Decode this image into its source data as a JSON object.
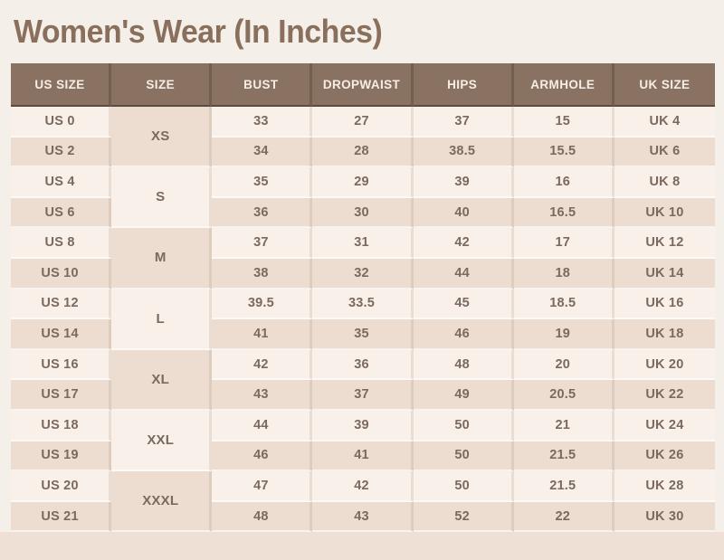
{
  "page": {
    "title": "Women's Wear (In Inches)",
    "background": "#f4f0e9"
  },
  "colors": {
    "title_text": "#8a6f5c",
    "header_bg": "#8a7263",
    "header_text": "#f6eee6",
    "header_separator": "#745e4d",
    "row_cream": "#f8f0e9",
    "row_beige": "#ecddd0",
    "body_text": "#7b695d",
    "footer_band": "#eee0d4"
  },
  "chart_data": {
    "type": "table",
    "title": "Women's Wear (In Inches)",
    "columns": [
      "US SIZE",
      "SIZE",
      "BUST",
      "DROPWAIST",
      "HIPS",
      "ARMHOLE",
      "UK SIZE"
    ],
    "groups": [
      {
        "size": "XS",
        "rows": [
          {
            "us_size": "US 0",
            "bust": "33",
            "dropwaist": "27",
            "hips": "37",
            "armhole": "15",
            "uk_size": "UK 4"
          },
          {
            "us_size": "US 2",
            "bust": "34",
            "dropwaist": "28",
            "hips": "38.5",
            "armhole": "15.5",
            "uk_size": "UK 6"
          }
        ]
      },
      {
        "size": "S",
        "rows": [
          {
            "us_size": "US 4",
            "bust": "35",
            "dropwaist": "29",
            "hips": "39",
            "armhole": "16",
            "uk_size": "UK 8"
          },
          {
            "us_size": "US 6",
            "bust": "36",
            "dropwaist": "30",
            "hips": "40",
            "armhole": "16.5",
            "uk_size": "UK 10"
          }
        ]
      },
      {
        "size": "M",
        "rows": [
          {
            "us_size": "US 8",
            "bust": "37",
            "dropwaist": "31",
            "hips": "42",
            "armhole": "17",
            "uk_size": "UK 12"
          },
          {
            "us_size": "US 10",
            "bust": "38",
            "dropwaist": "32",
            "hips": "44",
            "armhole": "18",
            "uk_size": "UK 14"
          }
        ]
      },
      {
        "size": "L",
        "rows": [
          {
            "us_size": "US 12",
            "bust": "39.5",
            "dropwaist": "33.5",
            "hips": "45",
            "armhole": "18.5",
            "uk_size": "UK 16"
          },
          {
            "us_size": "US 14",
            "bust": "41",
            "dropwaist": "35",
            "hips": "46",
            "armhole": "19",
            "uk_size": "UK 18"
          }
        ]
      },
      {
        "size": "XL",
        "rows": [
          {
            "us_size": "US 16",
            "bust": "42",
            "dropwaist": "36",
            "hips": "48",
            "armhole": "20",
            "uk_size": "UK 20"
          },
          {
            "us_size": "US 17",
            "bust": "43",
            "dropwaist": "37",
            "hips": "49",
            "armhole": "20.5",
            "uk_size": "UK 22"
          }
        ]
      },
      {
        "size": "XXL",
        "rows": [
          {
            "us_size": "US 18",
            "bust": "44",
            "dropwaist": "39",
            "hips": "50",
            "armhole": "21",
            "uk_size": "UK 24"
          },
          {
            "us_size": "US 19",
            "bust": "46",
            "dropwaist": "41",
            "hips": "50",
            "armhole": "21.5",
            "uk_size": "UK 26"
          }
        ]
      },
      {
        "size": "XXXL",
        "rows": [
          {
            "us_size": "US 20",
            "bust": "47",
            "dropwaist": "42",
            "hips": "50",
            "armhole": "21.5",
            "uk_size": "UK 28"
          },
          {
            "us_size": "US 21",
            "bust": "48",
            "dropwaist": "43",
            "hips": "52",
            "armhole": "22",
            "uk_size": "UK 30"
          }
        ]
      }
    ]
  }
}
